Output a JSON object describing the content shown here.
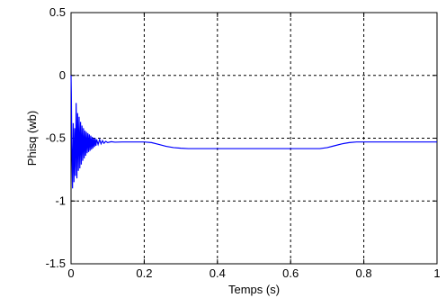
{
  "chart_data": {
    "type": "line",
    "xlabel": "Temps (s)",
    "ylabel": "Phisq (wb)",
    "xlim": [
      0,
      1
    ],
    "ylim": [
      -1.5,
      0.5
    ],
    "grid": true,
    "xticks": [
      0,
      0.2,
      0.4,
      0.6,
      0.8,
      1
    ],
    "xtick_labels": [
      "0",
      "0.2",
      "0.4",
      "0.6",
      "0.8",
      "1"
    ],
    "yticks": [
      -1.5,
      -1,
      -0.5,
      0,
      0.5
    ],
    "ytick_labels": [
      "-1.5",
      "-1",
      "-0.5",
      "0",
      "0.5"
    ],
    "series": [
      {
        "color": "#0000ff",
        "x": [
          0,
          0.0008,
          0.002,
          0.004,
          0.006,
          0.008,
          0.01,
          0.012,
          0.014,
          0.016,
          0.018,
          0.02,
          0.022,
          0.024,
          0.026,
          0.028,
          0.03,
          0.032,
          0.034,
          0.036,
          0.038,
          0.04,
          0.042,
          0.044,
          0.046,
          0.048,
          0.05,
          0.052,
          0.054,
          0.056,
          0.058,
          0.06,
          0.062,
          0.064,
          0.066,
          0.068,
          0.07,
          0.074,
          0.078,
          0.082,
          0.086,
          0.09,
          0.095,
          0.1,
          0.11,
          0.12,
          0.14,
          0.16,
          0.18,
          0.2,
          0.22,
          0.24,
          0.26,
          0.28,
          0.3,
          0.32,
          0.34,
          0.4,
          0.5,
          0.6,
          0.68,
          0.7,
          0.72,
          0.74,
          0.76,
          0.78,
          0.8,
          0.82,
          0.84,
          0.9,
          1.0
        ],
        "y": [
          0.0,
          -0.15,
          -0.55,
          -0.9,
          -0.38,
          -0.85,
          -0.42,
          -0.8,
          -0.22,
          -0.82,
          -0.3,
          -0.76,
          -0.33,
          -0.74,
          -0.37,
          -0.71,
          -0.4,
          -0.68,
          -0.42,
          -0.66,
          -0.44,
          -0.64,
          -0.45,
          -0.62,
          -0.46,
          -0.61,
          -0.47,
          -0.6,
          -0.48,
          -0.59,
          -0.49,
          -0.58,
          -0.5,
          -0.57,
          -0.5,
          -0.56,
          -0.51,
          -0.55,
          -0.51,
          -0.545,
          -0.52,
          -0.54,
          -0.525,
          -0.535,
          -0.528,
          -0.532,
          -0.53,
          -0.53,
          -0.53,
          -0.53,
          -0.535,
          -0.55,
          -0.565,
          -0.575,
          -0.58,
          -0.583,
          -0.583,
          -0.583,
          -0.583,
          -0.583,
          -0.583,
          -0.575,
          -0.56,
          -0.545,
          -0.535,
          -0.53,
          -0.53,
          -0.53,
          -0.53,
          -0.53,
          -0.53
        ]
      }
    ]
  }
}
